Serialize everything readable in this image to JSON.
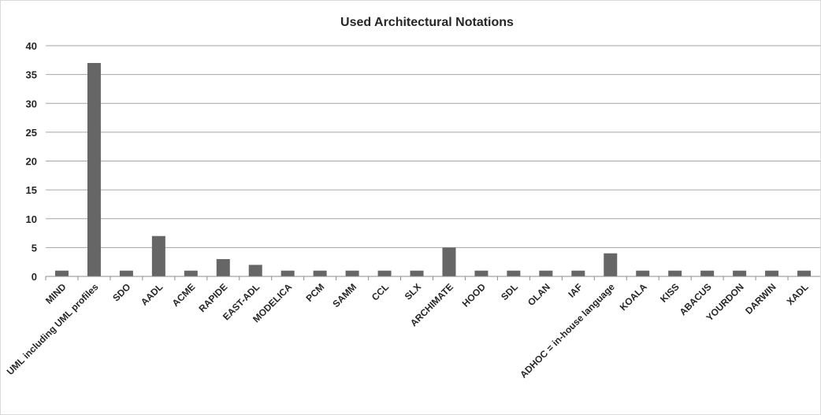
{
  "chart_data": {
    "type": "bar",
    "title": "Used Architectural Notations",
    "xlabel": "",
    "ylabel": "",
    "ylim": [
      0,
      40
    ],
    "yticks": [
      0,
      5,
      10,
      15,
      20,
      25,
      30,
      35,
      40
    ],
    "grid": true,
    "legend": "none",
    "bar_color": "#666666",
    "categories": [
      "MIND",
      "UML including UML profiles",
      "SDO",
      "AADL",
      "ACME",
      "RAPIDE",
      "EAST-ADL",
      "MODELICA",
      "PCM",
      "SAMM",
      "CCL",
      "SLX",
      "ARCHIMATE",
      "HOOD",
      "SDL",
      "OLAN",
      "IAF",
      "ADHOC = in-house language",
      "KOALA",
      "KISS",
      "ABACUS",
      "YOURDON",
      "DARWIN",
      "XADL"
    ],
    "values": [
      1,
      37,
      1,
      7,
      1,
      3,
      2,
      1,
      1,
      1,
      1,
      1,
      5,
      1,
      1,
      1,
      1,
      4,
      1,
      1,
      1,
      1,
      1,
      1
    ]
  }
}
